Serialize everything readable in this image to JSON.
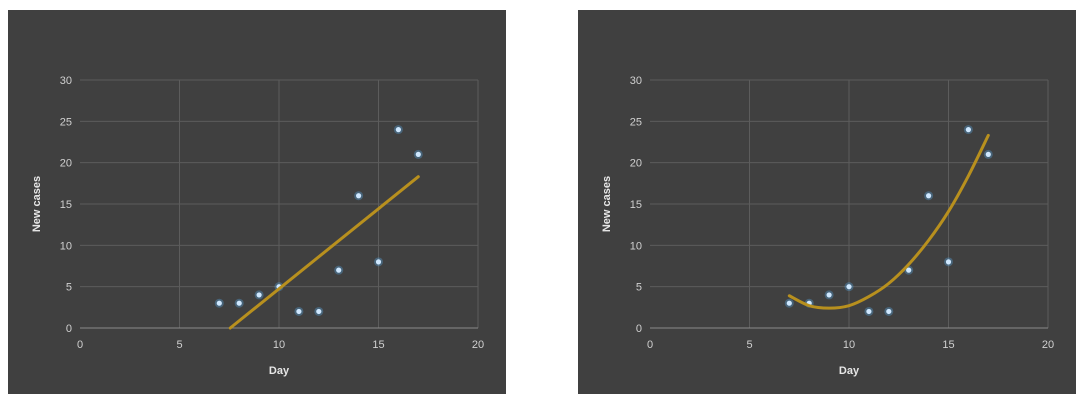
{
  "colors": {
    "background": "#404040",
    "point": "#5aa9e6",
    "trendline": "#b8901e"
  },
  "chart_data": [
    {
      "type": "scatter",
      "title": "",
      "xlabel": "Day",
      "ylabel": "New cases",
      "xlim": [
        0,
        20
      ],
      "ylim": [
        0,
        30
      ],
      "xticks": [
        "0",
        "5",
        "10",
        "15",
        "20"
      ],
      "yticks": [
        "0",
        "5",
        "10",
        "15",
        "20",
        "25",
        "30"
      ],
      "grid": true,
      "x": [
        7,
        8,
        9,
        10,
        11,
        12,
        13,
        14,
        15,
        16,
        17
      ],
      "y": [
        3,
        3,
        4,
        5,
        2,
        2,
        7,
        16,
        8,
        24,
        21
      ],
      "trendline": {
        "type": "linear",
        "x": [
          7.55,
          17
        ],
        "y": [
          0,
          18.3
        ]
      }
    },
    {
      "type": "scatter",
      "title": "",
      "xlabel": "Day",
      "ylabel": "New cases",
      "xlim": [
        0,
        20
      ],
      "ylim": [
        0,
        30
      ],
      "xticks": [
        "0",
        "5",
        "10",
        "15",
        "20"
      ],
      "yticks": [
        "0",
        "5",
        "10",
        "15",
        "20",
        "25",
        "30"
      ],
      "grid": true,
      "x": [
        7,
        8,
        9,
        10,
        11,
        12,
        13,
        14,
        15,
        16,
        17
      ],
      "y": [
        3,
        3,
        4,
        5,
        2,
        2,
        7,
        16,
        8,
        24,
        21
      ],
      "trendline": {
        "type": "polynomial",
        "x": [
          7,
          8,
          9,
          10,
          11,
          12,
          13,
          14,
          15,
          16,
          17
        ],
        "y": [
          3.9,
          2.7,
          2.4,
          2.7,
          3.8,
          5.4,
          7.7,
          10.6,
          14.1,
          18.4,
          23.3
        ]
      }
    }
  ]
}
